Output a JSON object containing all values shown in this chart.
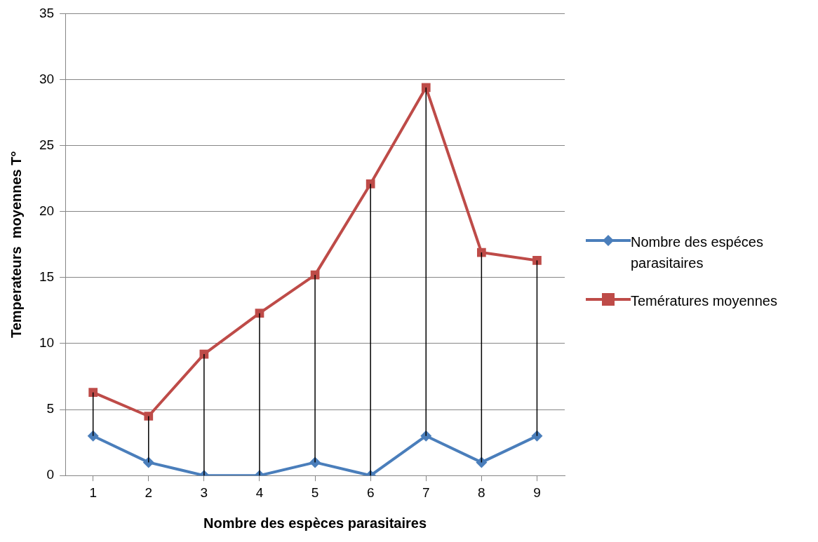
{
  "chart_data": {
    "type": "line",
    "xlabel": "Nombre des espèces parasitaires",
    "ylabel": "Temperateurs  moyennes T°",
    "categories": [
      "1",
      "2",
      "3",
      "4",
      "5",
      "6",
      "7",
      "8",
      "9"
    ],
    "series": [
      {
        "name": "Nombre des espéces parasitaires",
        "color": "#4a7ebb",
        "marker": "diamond",
        "values": [
          3,
          1,
          0,
          0,
          1,
          0,
          3,
          1,
          3
        ],
        "errors": [
          [
            3,
            6.3
          ],
          [
            1,
            4.5
          ],
          [
            0,
            9.2
          ],
          [
            0,
            12.3
          ],
          [
            1,
            15.2
          ],
          [
            0,
            22.1
          ],
          [
            3,
            29.4
          ],
          [
            1,
            16.9
          ],
          [
            3,
            16.3
          ]
        ]
      },
      {
        "name": "Temératures moyennes",
        "color": "#be4b48",
        "marker": "square",
        "values": [
          6.3,
          4.5,
          9.2,
          12.3,
          15.2,
          22.1,
          29.4,
          16.9,
          16.3
        ]
      }
    ],
    "ylim": [
      0,
      35
    ],
    "yticks": [
      0,
      5,
      10,
      15,
      20,
      25,
      30,
      35
    ],
    "grid": "y",
    "legend": "right",
    "line_style": "solid"
  }
}
